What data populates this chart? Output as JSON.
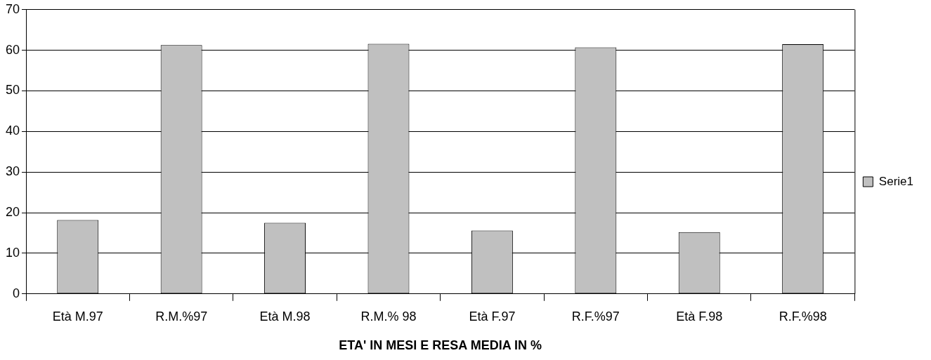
{
  "chart_data": {
    "type": "bar",
    "xlabel": "ETA' IN MESI E RESA MEDIA IN %",
    "categories": [
      "Età M.97",
      "R.M.%97",
      "Età M.98",
      "R.M.% 98",
      "Età F.97",
      "R.F.%97",
      "Età F.98",
      "R.F.%98"
    ],
    "series": [
      {
        "name": "Serie1",
        "color": "#c0c0c0",
        "values": [
          18.2,
          61.3,
          17.5,
          61.6,
          15.6,
          60.7,
          15.2,
          61.5
        ]
      }
    ],
    "ylim": [
      0,
      70
    ],
    "yticks": [
      0,
      10,
      20,
      30,
      40,
      50,
      60,
      70
    ],
    "grid": "y",
    "legend": "right"
  }
}
